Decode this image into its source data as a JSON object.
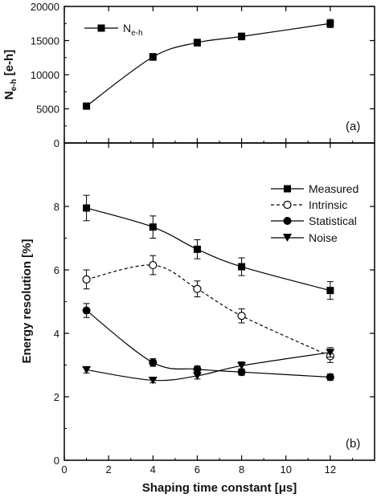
{
  "chart_data": [
    {
      "type": "line",
      "panel_label": "(a)",
      "ylabel_main": "N",
      "ylabel_sub": "e-h",
      "ylabel_rest": " [e-h]",
      "xlim": [
        0,
        14
      ],
      "ylim": [
        0,
        20000
      ],
      "yticks": [
        0,
        5000,
        10000,
        15000,
        20000
      ],
      "legend_position": "top-left",
      "series": [
        {
          "name_main": "N",
          "name_sub": "e-h",
          "marker": "square-filled",
          "line": "solid",
          "points": [
            {
              "x": 1,
              "y": 5400,
              "err": 0
            },
            {
              "x": 4,
              "y": 12600,
              "err": 500
            },
            {
              "x": 6,
              "y": 14700,
              "err": 500
            },
            {
              "x": 8,
              "y": 15600,
              "err": 500
            },
            {
              "x": 12,
              "y": 17500,
              "err": 600
            }
          ]
        }
      ]
    },
    {
      "type": "line",
      "panel_label": "(b)",
      "ylabel": "Energy resolution [%]",
      "xlabel": "Shaping time constant [μs]",
      "xlim": [
        0,
        14
      ],
      "ylim": [
        0,
        10
      ],
      "xticks": [
        0,
        2,
        4,
        6,
        8,
        10,
        12
      ],
      "yticks": [
        0,
        2,
        4,
        6,
        8
      ],
      "legend_position": "top-right",
      "series": [
        {
          "name": "Measured",
          "marker": "square-filled",
          "line": "solid",
          "points": [
            {
              "x": 1,
              "y": 7.95,
              "err": 0.4
            },
            {
              "x": 4,
              "y": 7.35,
              "err": 0.35
            },
            {
              "x": 6,
              "y": 6.65,
              "err": 0.3
            },
            {
              "x": 8,
              "y": 6.1,
              "err": 0.28
            },
            {
              "x": 12,
              "y": 5.35,
              "err": 0.28
            }
          ]
        },
        {
          "name": "Intrinsic",
          "marker": "circle-open",
          "line": "dashed",
          "points": [
            {
              "x": 1,
              "y": 5.7,
              "err": 0.3
            },
            {
              "x": 4,
              "y": 6.15,
              "err": 0.3
            },
            {
              "x": 6,
              "y": 5.4,
              "err": 0.25
            },
            {
              "x": 8,
              "y": 4.55,
              "err": 0.22
            },
            {
              "x": 12,
              "y": 3.28,
              "err": 0.2
            }
          ]
        },
        {
          "name": "Statistical",
          "marker": "circle-filled",
          "line": "solid",
          "points": [
            {
              "x": 1,
              "y": 4.72,
              "err": 0.22
            },
            {
              "x": 4,
              "y": 3.08,
              "err": 0.12
            },
            {
              "x": 6,
              "y": 2.87,
              "err": 0.1
            },
            {
              "x": 8,
              "y": 2.78,
              "err": 0.1
            },
            {
              "x": 12,
              "y": 2.62,
              "err": 0.1
            }
          ]
        },
        {
          "name": "Noise",
          "marker": "triangle-down-filled",
          "line": "solid",
          "points": [
            {
              "x": 1,
              "y": 2.85,
              "err": 0.1
            },
            {
              "x": 4,
              "y": 2.52,
              "err": 0.08
            },
            {
              "x": 6,
              "y": 2.66,
              "err": 0.1
            },
            {
              "x": 8,
              "y": 2.98,
              "err": 0.12
            },
            {
              "x": 12,
              "y": 3.4,
              "err": 0.15
            }
          ]
        }
      ]
    }
  ]
}
